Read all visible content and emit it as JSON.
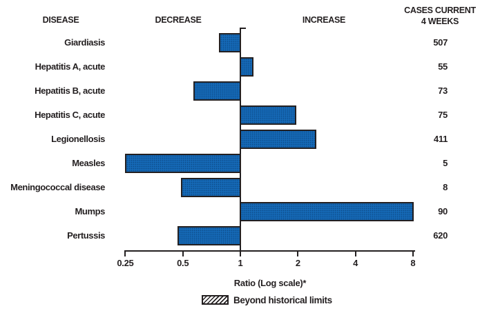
{
  "header": {
    "disease": "DISEASE",
    "decrease": "DECREASE",
    "increase": "INCREASE",
    "cases_line1": "CASES CURRENT",
    "cases_line2": "4 WEEKS"
  },
  "chart_data": {
    "type": "bar",
    "orientation": "horizontal",
    "scale": "log2",
    "baseline_ratio": 1,
    "xlabel": "Ratio (Log scale)*",
    "x_ticks": [
      {
        "label": "0.25",
        "value": 0.25
      },
      {
        "label": "0.5",
        "value": 0.5
      },
      {
        "label": "1",
        "value": 1
      },
      {
        "label": "2",
        "value": 2
      },
      {
        "label": "4",
        "value": 4
      },
      {
        "label": "8",
        "value": 8
      }
    ],
    "xlim": [
      0.25,
      8
    ],
    "grid": false,
    "legend": {
      "label": "Beyond historical limits",
      "swatch": "diagonal-hatch"
    },
    "rows": [
      {
        "disease": "Giardiasis",
        "ratio": 0.77,
        "cases": "507"
      },
      {
        "disease": "Hepatitis A, acute",
        "ratio": 1.15,
        "cases": "55"
      },
      {
        "disease": "Hepatitis B, acute",
        "ratio": 0.57,
        "cases": "73"
      },
      {
        "disease": "Hepatitis C, acute",
        "ratio": 1.93,
        "cases": "75"
      },
      {
        "disease": "Legionellosis",
        "ratio": 2.45,
        "cases": "411"
      },
      {
        "disease": "Measles",
        "ratio": 0.25,
        "cases": "5"
      },
      {
        "disease": "Meningococcal disease",
        "ratio": 0.49,
        "cases": "8"
      },
      {
        "disease": "Mumps",
        "ratio": 7.95,
        "cases": "90"
      },
      {
        "disease": "Pertussis",
        "ratio": 0.47,
        "cases": "620"
      }
    ],
    "colors": {
      "bar_fill": "#1569b6",
      "bar_border": "#231f20",
      "axis": "#231f20",
      "text": "#231f20"
    }
  }
}
